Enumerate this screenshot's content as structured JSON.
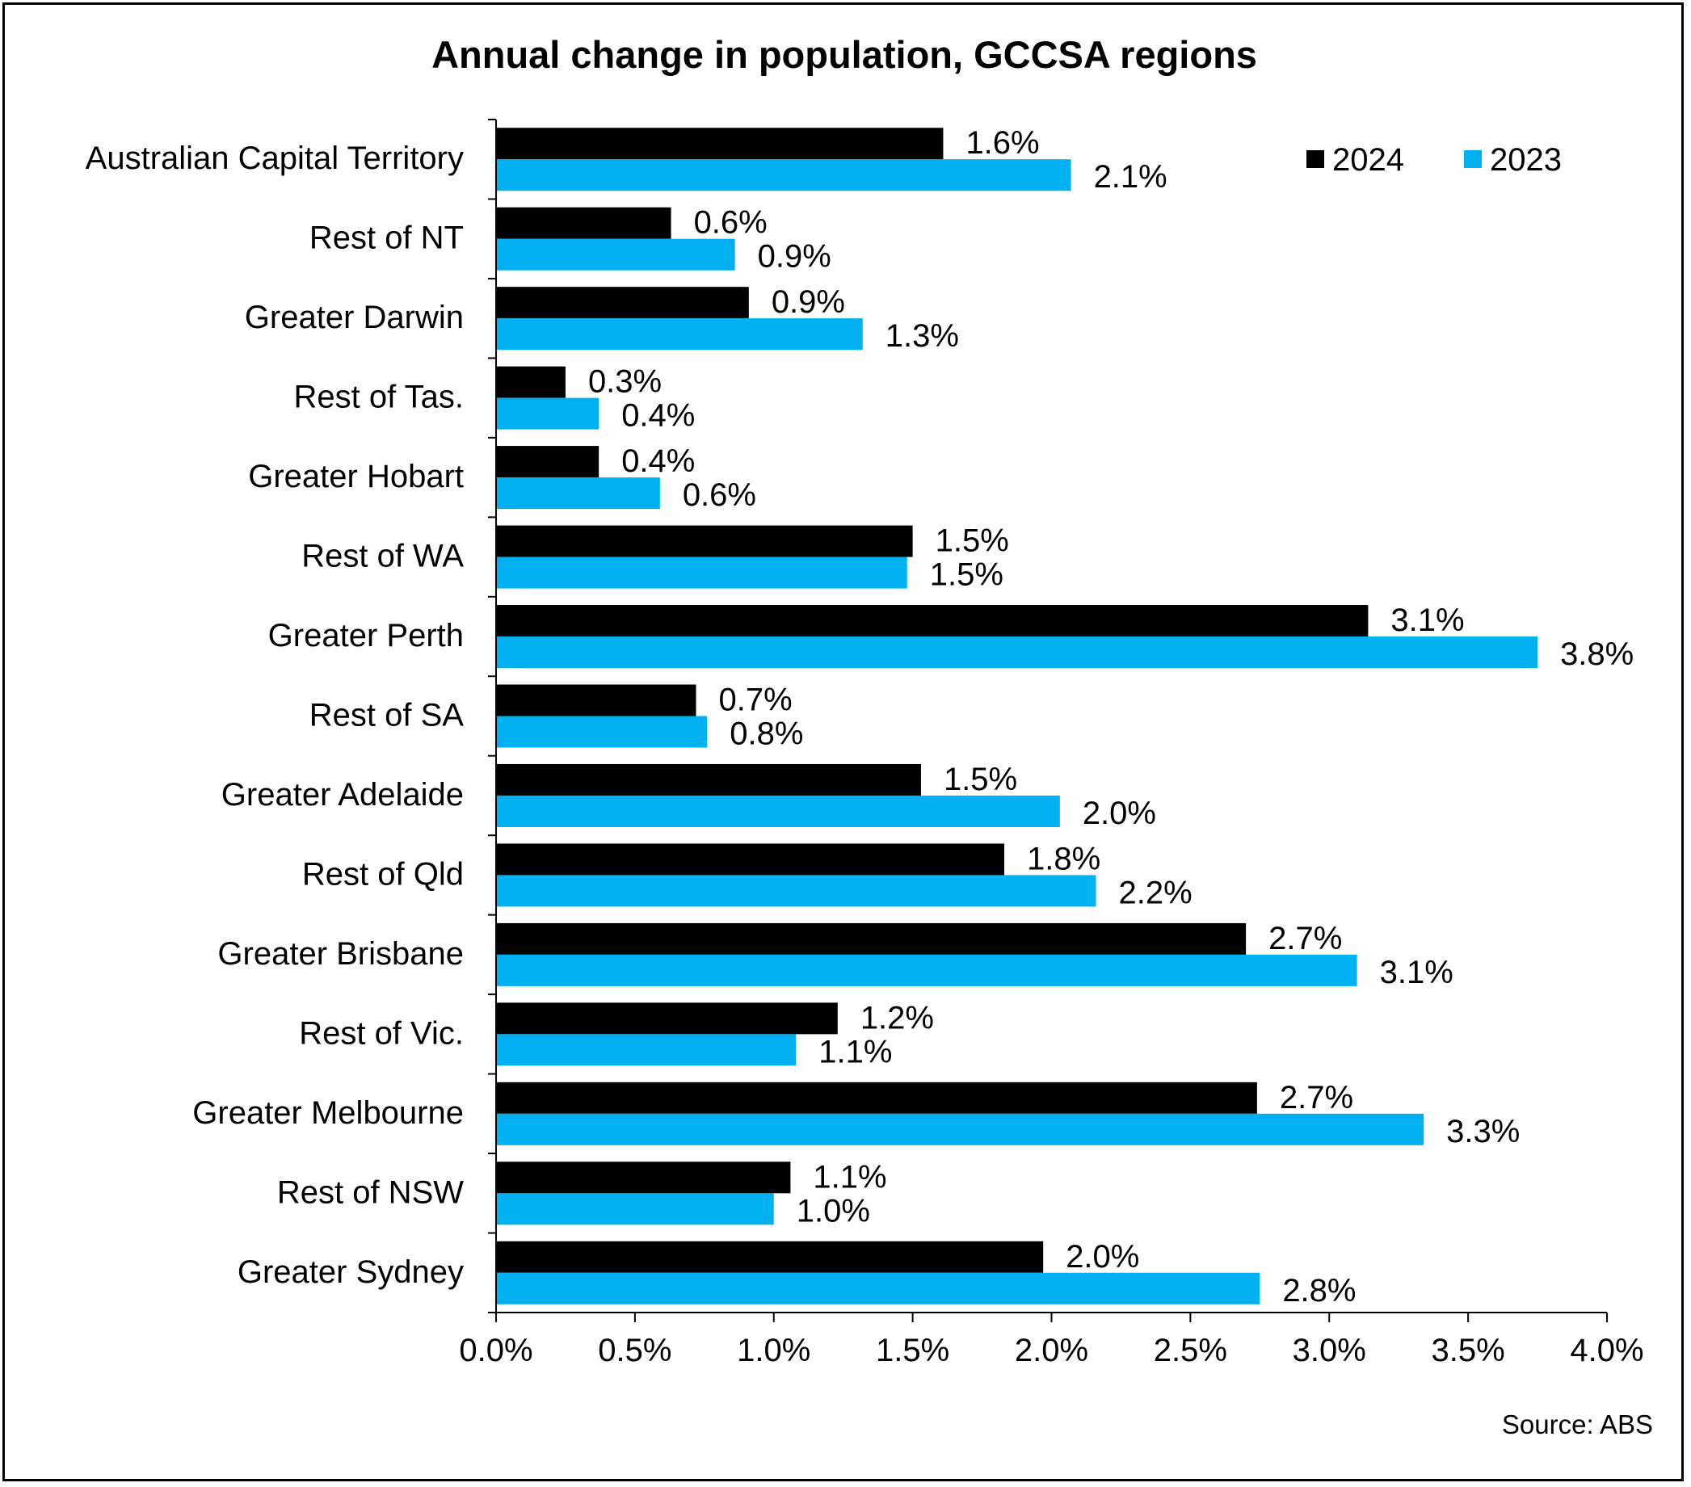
{
  "chart_data": {
    "type": "bar",
    "orientation": "horizontal",
    "title": "Annual change in population, GCCSA regions",
    "source": "Source: ABS",
    "xlabel": "",
    "ylabel": "",
    "xlim": [
      0,
      4
    ],
    "x_ticks": [
      "0.0%",
      "0.5%",
      "1.0%",
      "1.5%",
      "2.0%",
      "2.5%",
      "3.0%",
      "3.5%",
      "4.0%"
    ],
    "grid": false,
    "legend_position": "top-right",
    "categories": [
      "Australian Capital Territory",
      "Rest of NT",
      "Greater Darwin",
      "Rest of Tas.",
      "Greater Hobart",
      "Rest of WA",
      "Greater Perth",
      "Rest of SA",
      "Greater Adelaide",
      "Rest of Qld",
      "Greater Brisbane",
      "Rest of Vic.",
      "Greater Melbourne",
      "Rest of NSW",
      "Greater Sydney"
    ],
    "series": [
      {
        "name": "2024",
        "color": "#000000",
        "values": [
          1.61,
          0.63,
          0.91,
          0.25,
          0.37,
          1.5,
          3.14,
          0.72,
          1.53,
          1.83,
          2.7,
          1.23,
          2.74,
          1.06,
          1.97
        ],
        "labels": [
          "1.6%",
          "0.6%",
          "0.9%",
          "0.3%",
          "0.4%",
          "1.5%",
          "3.1%",
          "0.7%",
          "1.5%",
          "1.8%",
          "2.7%",
          "1.2%",
          "2.7%",
          "1.1%",
          "2.0%"
        ]
      },
      {
        "name": "2023",
        "color": "#00B0F0",
        "values": [
          2.07,
          0.86,
          1.32,
          0.37,
          0.59,
          1.48,
          3.75,
          0.76,
          2.03,
          2.16,
          3.1,
          1.08,
          3.34,
          1.0,
          2.75
        ],
        "labels": [
          "2.1%",
          "0.9%",
          "1.3%",
          "0.4%",
          "0.6%",
          "1.5%",
          "3.8%",
          "0.8%",
          "2.0%",
          "2.2%",
          "3.1%",
          "1.1%",
          "3.3%",
          "1.0%",
          "2.8%"
        ]
      }
    ]
  }
}
